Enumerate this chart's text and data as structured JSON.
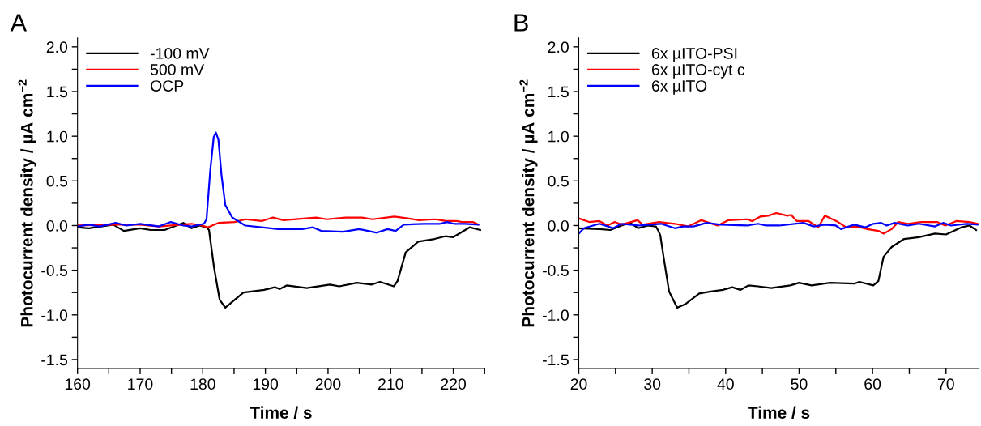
{
  "chart_data": [
    {
      "type": "line",
      "title": "A",
      "xlabel": "Time / s",
      "ylabel": "Photocurrent density / µA cm$^{−2}$",
      "xlim": [
        160,
        225
      ],
      "ylim": [
        -1.6,
        2.1
      ],
      "xticks": [
        160,
        {
          "value": 165,
          "label": null
        },
        170,
        {
          "value": 175,
          "label": null
        },
        180,
        {
          "value": 185,
          "label": null
        },
        190,
        {
          "value": 195,
          "label": null
        },
        200,
        {
          "value": 205,
          "label": null
        },
        210,
        {
          "value": 215,
          "label": null
        },
        220,
        {
          "value": 225,
          "label": null
        }
      ],
      "yticks": [
        -1.5,
        {
          "value": -1.25,
          "label": null
        },
        {
          "value": -1,
          "label": "-1.0"
        },
        {
          "value": -0.75,
          "label": null
        },
        -0.5,
        {
          "value": -0.25,
          "label": null
        },
        {
          "value": 0,
          "label": "0.0"
        },
        {
          "value": 0.25,
          "label": null
        },
        0.5,
        {
          "value": 0.75,
          "label": null
        },
        {
          "value": 1,
          "label": "1.0"
        },
        {
          "value": 1.25,
          "label": null
        },
        1.5,
        {
          "value": 1.75,
          "label": null
        },
        {
          "value": 2,
          "label": "2.0"
        }
      ],
      "grid": false,
      "legend": "top left",
      "line_style": "solid",
      "marker": "none",
      "series": [
        {
          "name": "-100 mV",
          "color": "#000000",
          "x": [
            160,
            161.8,
            165.7,
            167.4,
            170,
            171.7,
            173.9,
            176.9,
            178.2,
            179.5,
            180.6,
            181.0,
            181.8,
            182.7,
            183.6,
            186.5,
            189.8,
            191.5,
            192.3,
            193.4,
            196.6,
            200.3,
            201.8,
            204.6,
            207,
            208.3,
            210.5,
            211.1,
            212.4,
            214.4,
            217,
            218.7,
            220,
            222.6,
            224.3
          ],
          "values": [
            -0.02,
            -0.03,
            0.01,
            -0.06,
            -0.03,
            -0.05,
            -0.05,
            0.03,
            -0.03,
            0.0,
            -0.02,
            -0.05,
            -0.47,
            -0.83,
            -0.92,
            -0.75,
            -0.72,
            -0.69,
            -0.71,
            -0.67,
            -0.7,
            -0.66,
            -0.68,
            -0.64,
            -0.66,
            -0.63,
            -0.68,
            -0.62,
            -0.3,
            -0.18,
            -0.15,
            -0.12,
            -0.13,
            -0.02,
            -0.05
          ]
        },
        {
          "name": "500 mV",
          "color": "#ff0000",
          "x": [
            160,
            165.7,
            170,
            173,
            176.5,
            178.2,
            179.9,
            180.8,
            182.5,
            185.1,
            186.8,
            189.4,
            191.2,
            192.9,
            198.1,
            199.8,
            202.8,
            205.4,
            207.1,
            210.6,
            212.7,
            214.5,
            217.1,
            218.8,
            220.5,
            221.4,
            223.1,
            224
          ],
          "values": [
            0.0,
            0.01,
            0.01,
            -0.01,
            0.01,
            0.02,
            0.0,
            -0.02,
            0.03,
            0.04,
            0.07,
            0.05,
            0.09,
            0.06,
            0.09,
            0.07,
            0.09,
            0.09,
            0.07,
            0.1,
            0.08,
            0.06,
            0.07,
            0.05,
            0.05,
            0.04,
            0.04,
            0.01
          ]
        },
        {
          "name": "OCP",
          "color": "#0000ff",
          "x": [
            160,
            161.8,
            163.5,
            166.1,
            167.8,
            170,
            173,
            174.9,
            176.9,
            178.2,
            180.2,
            180.6,
            181.2,
            181.75,
            182.1,
            182.5,
            183,
            183.6,
            184.7,
            186.8,
            189.4,
            192,
            195.9,
            197.6,
            198.9,
            202.4,
            205,
            207.8,
            209.5,
            210.8,
            212.1,
            215.3,
            217.9,
            219,
            220.1,
            221.8,
            224
          ],
          "values": [
            -0.01,
            0.01,
            -0.01,
            0.03,
            0.0,
            0.02,
            -0.01,
            0.04,
            0.0,
            -0.01,
            0.02,
            0.07,
            0.62,
            0.99,
            1.04,
            0.96,
            0.56,
            0.23,
            0.09,
            0.0,
            -0.02,
            -0.04,
            -0.04,
            -0.02,
            -0.06,
            -0.07,
            -0.04,
            -0.08,
            -0.04,
            -0.06,
            0.01,
            0.02,
            0.02,
            0.04,
            0.02,
            0.02,
            0.01
          ]
        }
      ]
    },
    {
      "type": "line",
      "title": "B",
      "xlabel": "Time / s",
      "ylabel": "Photocurrent density / µA cm$^{−2}$",
      "xlim": [
        20,
        74.5
      ],
      "ylim": [
        -1.6,
        2.1
      ],
      "xticks": [
        20,
        {
          "value": 25,
          "label": null
        },
        30,
        {
          "value": 35,
          "label": null
        },
        40,
        {
          "value": 45,
          "label": null
        },
        50,
        {
          "value": 55,
          "label": null
        },
        60,
        {
          "value": 65,
          "label": null
        },
        70
      ],
      "yticks": [
        -1.5,
        {
          "value": -1.25,
          "label": null
        },
        {
          "value": -1,
          "label": "-1.0"
        },
        {
          "value": -0.75,
          "label": null
        },
        -0.5,
        {
          "value": -0.25,
          "label": null
        },
        {
          "value": 0,
          "label": "0.0"
        },
        {
          "value": 0.25,
          "label": null
        },
        0.5,
        {
          "value": 0.75,
          "label": null
        },
        {
          "value": 1,
          "label": "1.0"
        },
        {
          "value": 1.25,
          "label": null
        },
        1.5,
        {
          "value": 1.75,
          "label": null
        },
        {
          "value": 2,
          "label": "2.0"
        }
      ],
      "grid": false,
      "legend": "top left",
      "line_style": "solid",
      "marker": "none",
      "series": [
        {
          "name": "6x µITO-PSI",
          "color": "#000000",
          "x": [
            20,
            22.8,
            24.3,
            25.8,
            27,
            28.1,
            29.4,
            30.5,
            30.9,
            31.1,
            31.6,
            32.3,
            33.4,
            34.5,
            36.4,
            37.8,
            39.6,
            40.9,
            42,
            43.1,
            44.4,
            46.2,
            48.8,
            50,
            51.7,
            54.2,
            57.5,
            58.2,
            60.1,
            60.8,
            61.5,
            62.6,
            64.3,
            66.3,
            68.5,
            70,
            72.1,
            73.2,
            74.1
          ],
          "values": [
            -0.03,
            -0.04,
            -0.05,
            0.0,
            0.03,
            -0.03,
            0.0,
            -0.01,
            -0.07,
            -0.11,
            -0.38,
            -0.74,
            -0.92,
            -0.88,
            -0.76,
            -0.74,
            -0.72,
            -0.69,
            -0.72,
            -0.67,
            -0.68,
            -0.7,
            -0.67,
            -0.64,
            -0.67,
            -0.64,
            -0.65,
            -0.63,
            -0.67,
            -0.62,
            -0.35,
            -0.24,
            -0.15,
            -0.13,
            -0.09,
            -0.1,
            -0.02,
            0.0,
            -0.05
          ]
        },
        {
          "name": "6x µITO-cyt c",
          "color": "#ff0000",
          "x": [
            20,
            21.4,
            22.8,
            23.9,
            24.9,
            25.8,
            28,
            28.7,
            30.9,
            33.1,
            34.9,
            36.7,
            38.9,
            40.4,
            42.9,
            43.6,
            44.7,
            45.8,
            46.9,
            48.4,
            48.9,
            49.7,
            51.3,
            52.6,
            53.5,
            55.3,
            56.4,
            57.9,
            59.3,
            60.8,
            61.5,
            62.6,
            63.5,
            64.8,
            66.6,
            68.8,
            69.9,
            71.4,
            73.2,
            74.3
          ],
          "values": [
            0.08,
            0.04,
            0.05,
            0.0,
            0.04,
            0.01,
            0.06,
            0.01,
            0.04,
            0.02,
            -0.01,
            0.06,
            0.0,
            0.06,
            0.07,
            0.05,
            0.1,
            0.11,
            0.14,
            0.11,
            0.12,
            0.05,
            0.05,
            -0.02,
            0.11,
            0.04,
            -0.02,
            -0.01,
            -0.04,
            -0.06,
            -0.09,
            -0.04,
            0.04,
            0.02,
            0.04,
            0.04,
            0.0,
            0.05,
            0.04,
            0.02
          ]
        },
        {
          "name": "6x µITO",
          "color": "#0000ff",
          "x": [
            20,
            20.7,
            22.8,
            24.7,
            25.8,
            28.3,
            31.2,
            33.1,
            34.2,
            35.6,
            37.4,
            39.3,
            42.9,
            44.4,
            45.5,
            47.3,
            50.6,
            52,
            53.5,
            55,
            55.7,
            57.5,
            59,
            60.1,
            61.2,
            61.9,
            63,
            64.8,
            66.3,
            68.5,
            69.6,
            70.7,
            72.8,
            74.3
          ],
          "values": [
            -0.09,
            -0.03,
            0.02,
            -0.03,
            0.02,
            0.0,
            0.02,
            -0.03,
            -0.01,
            -0.01,
            0.03,
            0.01,
            0.0,
            0.02,
            0.0,
            0.0,
            0.03,
            -0.01,
            0.01,
            0.0,
            -0.04,
            0.01,
            -0.02,
            0.02,
            0.03,
            0.0,
            0.03,
            0.0,
            0.02,
            -0.01,
            0.03,
            0.0,
            0.02,
            0.01
          ]
        }
      ]
    }
  ]
}
